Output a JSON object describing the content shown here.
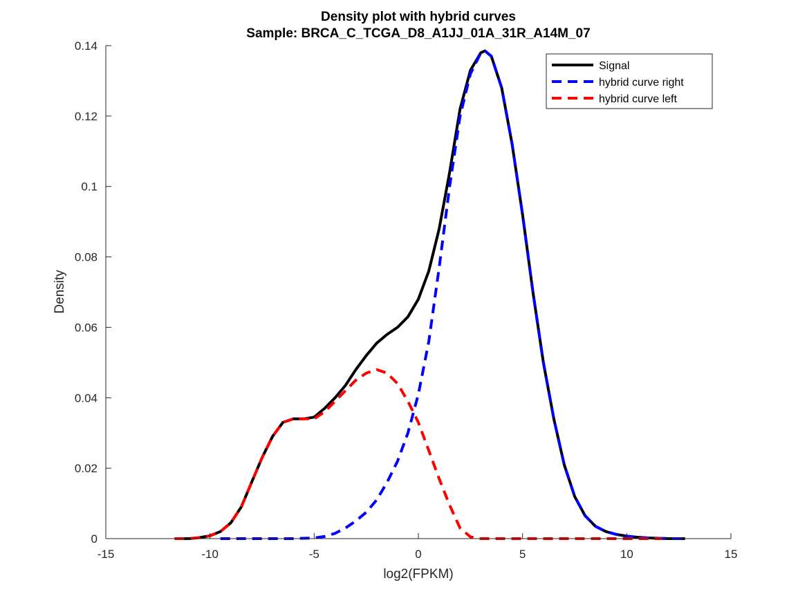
{
  "chart_data": {
    "type": "line",
    "title": "Density plot with hybrid curves",
    "subtitle": "Sample: BRCA_C_TCGA_D8_A1JJ_01A_31R_A14M_07",
    "xlabel": "log2(FPKM)",
    "ylabel": "Density",
    "xlim": [
      -15,
      15
    ],
    "ylim": [
      0,
      0.14
    ],
    "x_ticks": [
      "-15",
      "-10",
      "-5",
      "0",
      "5",
      "10",
      "15"
    ],
    "y_ticks": [
      "0",
      "0.02",
      "0.04",
      "0.06",
      "0.08",
      "0.1",
      "0.12",
      "0.14"
    ],
    "grid": false,
    "legend_position": "top-right",
    "series": [
      {
        "name": "Signal",
        "color": "#000000",
        "style": "solid",
        "x": [
          -11.7,
          -11,
          -10.5,
          -10,
          -9.5,
          -9,
          -8.5,
          -8,
          -7.5,
          -7,
          -6.5,
          -6,
          -5.5,
          -5,
          -4.5,
          -4,
          -3.5,
          -3,
          -2.5,
          -2,
          -1.5,
          -1,
          -0.5,
          0,
          0.5,
          1,
          1.5,
          2,
          2.5,
          3,
          3.2,
          3.5,
          4,
          4.5,
          5,
          5.5,
          6,
          6.5,
          7,
          7.5,
          8,
          8.5,
          9,
          9.5,
          10,
          10.5,
          11,
          11.5,
          12,
          12.8
        ],
        "y": [
          0,
          0,
          0.0003,
          0.0008,
          0.002,
          0.0045,
          0.009,
          0.016,
          0.023,
          0.029,
          0.033,
          0.034,
          0.034,
          0.0345,
          0.037,
          0.04,
          0.0435,
          0.048,
          0.052,
          0.0555,
          0.058,
          0.06,
          0.063,
          0.068,
          0.076,
          0.088,
          0.104,
          0.122,
          0.133,
          0.138,
          0.1385,
          0.137,
          0.128,
          0.112,
          0.092,
          0.07,
          0.05,
          0.034,
          0.021,
          0.012,
          0.0065,
          0.0035,
          0.002,
          0.0012,
          0.0007,
          0.0004,
          0.0002,
          0.0001,
          0,
          0
        ]
      },
      {
        "name": "hybrid curve right",
        "color": "#0000ff",
        "style": "dashed",
        "x": [
          -9.5,
          -9,
          -8,
          -7,
          -6,
          -5,
          -4.5,
          -4,
          -3.5,
          -3,
          -2.5,
          -2,
          -1.5,
          -1,
          -0.5,
          0,
          0.5,
          1,
          1.5,
          2,
          2.5,
          3,
          3.2,
          3.5,
          4,
          4.5,
          5,
          5.5,
          6,
          6.5,
          7,
          7.5,
          8,
          8.5,
          9,
          9.5,
          10,
          10.5,
          11,
          11.5,
          12,
          12.8
        ],
        "y": [
          0,
          0,
          0,
          0,
          0,
          0.0002,
          0.0006,
          0.0015,
          0.003,
          0.005,
          0.0075,
          0.011,
          0.016,
          0.022,
          0.03,
          0.041,
          0.056,
          0.077,
          0.1,
          0.12,
          0.132,
          0.138,
          0.1385,
          0.137,
          0.128,
          0.112,
          0.092,
          0.07,
          0.05,
          0.034,
          0.021,
          0.012,
          0.0065,
          0.0035,
          0.002,
          0.0012,
          0.0007,
          0.0004,
          0.0002,
          0.0001,
          0,
          0
        ]
      },
      {
        "name": "hybrid curve left",
        "color": "#ff0000",
        "style": "dashed",
        "x": [
          -11.7,
          -11,
          -10.5,
          -10,
          -9.5,
          -9,
          -8.5,
          -8,
          -7.5,
          -7,
          -6.5,
          -6,
          -5.5,
          -5,
          -4.5,
          -4,
          -3.5,
          -3,
          -2.5,
          -2,
          -1.5,
          -1,
          -0.5,
          0,
          0.5,
          1,
          1.5,
          2,
          2.5,
          3,
          4,
          6,
          8,
          10,
          11.7
        ],
        "y": [
          0,
          0,
          0.0003,
          0.0008,
          0.002,
          0.0045,
          0.009,
          0.016,
          0.023,
          0.029,
          0.033,
          0.034,
          0.034,
          0.034,
          0.036,
          0.039,
          0.042,
          0.045,
          0.047,
          0.048,
          0.047,
          0.044,
          0.039,
          0.033,
          0.025,
          0.017,
          0.0095,
          0.003,
          0.0005,
          0,
          0,
          0,
          0,
          0,
          0
        ]
      }
    ]
  }
}
